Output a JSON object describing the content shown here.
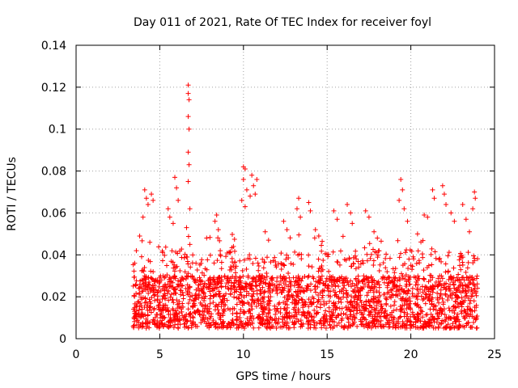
{
  "chart_data": {
    "type": "scatter",
    "title": "Day 011 of 2021, Rate Of TEC Index for receiver foyl",
    "xlabel": "GPS time / hours",
    "ylabel": "ROTI / TECUs",
    "xlim": [
      0,
      25
    ],
    "ylim": [
      0,
      0.14
    ],
    "x_ticks": [
      "0",
      "5",
      "10",
      "15",
      "20",
      "25"
    ],
    "x_tick_values": [
      0,
      5,
      10,
      15,
      20,
      25
    ],
    "y_ticks": [
      "0",
      "0.02",
      "0.04",
      "0.06",
      "0.08",
      "0.1",
      "0.12",
      "0.14"
    ],
    "y_tick_values": [
      0,
      0.02,
      0.04,
      0.06,
      0.08,
      0.1,
      0.12,
      0.14
    ],
    "grid": true,
    "marker": "+",
    "color": "#ff0000",
    "series": [
      {
        "name": "ROTI",
        "x_range": [
          3.4,
          24.0
        ],
        "baseline_range": [
          0.005,
          0.03
        ],
        "points": [
          [
            6.7,
            0.121
          ],
          [
            6.7,
            0.117
          ],
          [
            6.75,
            0.114
          ],
          [
            6.7,
            0.106
          ],
          [
            6.75,
            0.1
          ],
          [
            6.7,
            0.089
          ],
          [
            6.75,
            0.083
          ],
          [
            6.7,
            0.075
          ],
          [
            6.8,
            0.062
          ],
          [
            6.6,
            0.053
          ],
          [
            6.8,
            0.045
          ],
          [
            10.0,
            0.082
          ],
          [
            10.1,
            0.081
          ],
          [
            10.0,
            0.076
          ],
          [
            10.2,
            0.071
          ],
          [
            9.9,
            0.066
          ],
          [
            10.1,
            0.063
          ],
          [
            10.5,
            0.078
          ],
          [
            10.6,
            0.073
          ],
          [
            10.7,
            0.069
          ],
          [
            10.8,
            0.076
          ],
          [
            10.4,
            0.068
          ],
          [
            4.1,
            0.071
          ],
          [
            4.2,
            0.067
          ],
          [
            4.3,
            0.064
          ],
          [
            4.0,
            0.058
          ],
          [
            4.5,
            0.069
          ],
          [
            4.6,
            0.066
          ],
          [
            3.5,
            0.036
          ],
          [
            3.6,
            0.042
          ],
          [
            3.8,
            0.049
          ],
          [
            5.5,
            0.062
          ],
          [
            5.6,
            0.058
          ],
          [
            5.9,
            0.077
          ],
          [
            6.0,
            0.072
          ],
          [
            6.1,
            0.066
          ],
          [
            5.8,
            0.055
          ],
          [
            8.4,
            0.059
          ],
          [
            8.3,
            0.056
          ],
          [
            8.5,
            0.052
          ],
          [
            7.8,
            0.048
          ],
          [
            9.4,
            0.044
          ],
          [
            9.2,
            0.041
          ],
          [
            11.3,
            0.051
          ],
          [
            11.5,
            0.047
          ],
          [
            12.4,
            0.056
          ],
          [
            12.6,
            0.052
          ],
          [
            13.3,
            0.067
          ],
          [
            13.2,
            0.062
          ],
          [
            13.4,
            0.058
          ],
          [
            13.9,
            0.065
          ],
          [
            14.0,
            0.061
          ],
          [
            14.3,
            0.052
          ],
          [
            14.5,
            0.049
          ],
          [
            15.4,
            0.061
          ],
          [
            15.6,
            0.057
          ],
          [
            16.2,
            0.064
          ],
          [
            16.4,
            0.06
          ],
          [
            16.5,
            0.055
          ],
          [
            17.3,
            0.061
          ],
          [
            17.5,
            0.058
          ],
          [
            17.8,
            0.051
          ],
          [
            18.0,
            0.048
          ],
          [
            19.4,
            0.076
          ],
          [
            19.5,
            0.071
          ],
          [
            19.3,
            0.066
          ],
          [
            19.6,
            0.062
          ],
          [
            19.8,
            0.056
          ],
          [
            20.4,
            0.05
          ],
          [
            20.8,
            0.059
          ],
          [
            21.0,
            0.058
          ],
          [
            21.3,
            0.071
          ],
          [
            21.4,
            0.067
          ],
          [
            21.9,
            0.073
          ],
          [
            22.0,
            0.069
          ],
          [
            22.1,
            0.064
          ],
          [
            22.4,
            0.06
          ],
          [
            22.6,
            0.056
          ],
          [
            23.1,
            0.064
          ],
          [
            23.3,
            0.057
          ],
          [
            23.5,
            0.051
          ],
          [
            23.8,
            0.07
          ],
          [
            23.85,
            0.067
          ],
          [
            23.7,
            0.062
          ]
        ]
      }
    ]
  }
}
